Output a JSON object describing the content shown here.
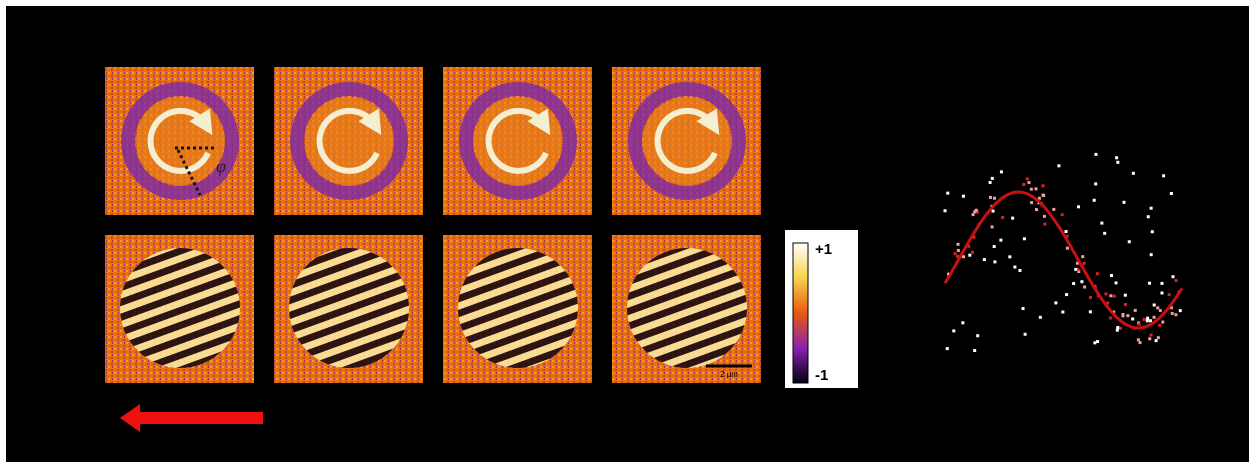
{
  "figure": {
    "angle_label": "φ",
    "colorbar": {
      "top_label": "+1",
      "bottom_label": "-1"
    },
    "scale_bar": "2 µm"
  }
}
